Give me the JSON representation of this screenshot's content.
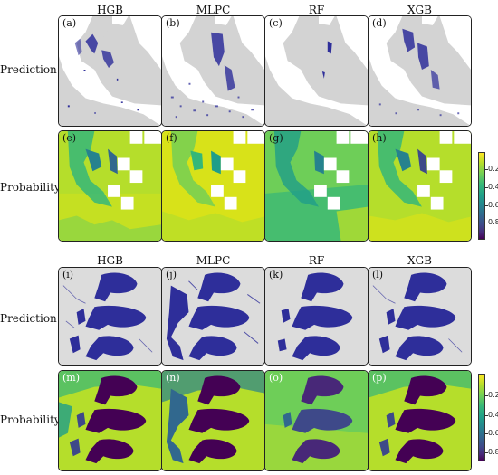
{
  "top_section": {
    "column_titles": [
      "HGB",
      "MLPC",
      "RF",
      "XGB"
    ],
    "row_labels": [
      "Prediction",
      "Probability"
    ],
    "prediction_panels": [
      "(a)",
      "(b)",
      "(c)",
      "(d)"
    ],
    "probability_panels": [
      "(e)",
      "(f)",
      "(g)",
      "(h)"
    ],
    "colorbar_ticks": [
      "0.2",
      "0.4",
      "0.6",
      "0.8"
    ]
  },
  "bottom_section": {
    "column_titles": [
      "HGB",
      "MLPC",
      "RF",
      "XGB"
    ],
    "row_labels": [
      "Prediction",
      "Probability"
    ],
    "prediction_panels": [
      "(i)",
      "(j)",
      "(k)",
      "(l)"
    ],
    "probability_panels": [
      "(m)",
      "(n)",
      "(o)",
      "(p)"
    ],
    "colorbar_ticks": [
      "0.2",
      "0.4",
      "0.6",
      "0.8"
    ]
  },
  "colors": {
    "land": "#d3d3d3",
    "water": "#ffffff",
    "prediction": "#2e2e9a",
    "viridis_low": "#440154",
    "viridis_high": "#fde725"
  }
}
